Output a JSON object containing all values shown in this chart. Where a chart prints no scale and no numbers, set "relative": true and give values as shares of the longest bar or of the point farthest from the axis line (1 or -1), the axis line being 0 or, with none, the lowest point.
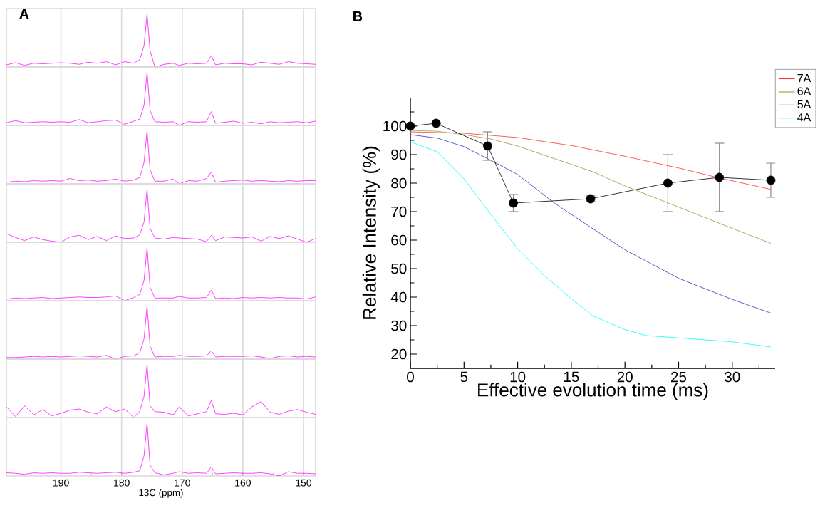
{
  "chart_data": [
    {
      "type": "line",
      "title": "A",
      "relative": true,
      "xlim": [
        199,
        148
      ],
      "xticks": [
        190,
        180,
        170,
        160,
        150
      ],
      "grid": "x",
      "tick_labels": false,
      "x": [
        199,
        197.5,
        196,
        194.5,
        193,
        191.5,
        190,
        188.5,
        187,
        185.5,
        184,
        182.5,
        181,
        179.5,
        178,
        177,
        176.3,
        175.8,
        175.3,
        174.5,
        173,
        171.5,
        170.5,
        169,
        167.5,
        166,
        165.2,
        164.5,
        163,
        161.5,
        160,
        158.5,
        157,
        155.5,
        154,
        152.5,
        151,
        149.5,
        148
      ],
      "series": [
        {
          "color": "#ff33ff",
          "values": [
            0.04,
            0.08,
            0.03,
            0.07,
            0.06,
            0.07,
            0.08,
            0.07,
            0.05,
            0.09,
            0.07,
            0.1,
            0.04,
            0.1,
            0.07,
            0.14,
            0.4,
            1,
            0.3,
            0.0,
            0.05,
            0.07,
            0.03,
            0.07,
            0.06,
            0.07,
            0.21,
            0.04,
            0.07,
            0.06,
            0.06,
            0.04,
            0.09,
            0.07,
            0.05,
            0.1,
            0.07,
            0.06,
            0.05
          ]
        }
      ]
    },
    {
      "type": "line",
      "relative": true,
      "xlim": [
        199,
        148
      ],
      "xticks": [
        190,
        180,
        170,
        160,
        150
      ],
      "grid": "x",
      "tick_labels": false,
      "x": [
        199,
        197.5,
        196,
        194.5,
        193,
        191.5,
        190,
        188.5,
        187,
        185.5,
        184,
        182.5,
        181,
        179.5,
        178,
        177,
        176.3,
        175.8,
        175.3,
        174.5,
        173,
        171.5,
        170.5,
        169,
        167.5,
        166,
        165.2,
        164.5,
        163,
        161.5,
        160,
        158.5,
        157,
        155.5,
        154,
        152.5,
        151,
        149.5,
        148
      ],
      "series": [
        {
          "color": "#ff33ff",
          "values": [
            0.05,
            0.09,
            0.05,
            0.06,
            0.07,
            0.06,
            0.07,
            0.06,
            0.11,
            0.05,
            0.07,
            0.09,
            0.1,
            0.02,
            0.08,
            0.12,
            0.38,
            1,
            0.28,
            0.07,
            0.06,
            0.07,
            0.0,
            0.07,
            0.06,
            0.07,
            0.26,
            0.04,
            0.06,
            0.08,
            0.04,
            0.06,
            0.03,
            0.07,
            0.05,
            0.06,
            0.07,
            0.05,
            0.08
          ]
        }
      ]
    },
    {
      "type": "line",
      "relative": true,
      "xlim": [
        199,
        148
      ],
      "xticks": [
        190,
        180,
        170,
        160,
        150
      ],
      "grid": "x",
      "tick_labels": false,
      "x": [
        199,
        197.5,
        196,
        194.5,
        193,
        191.5,
        190,
        188.5,
        187,
        185.5,
        184,
        182.5,
        181,
        179.5,
        178,
        177,
        176.3,
        175.8,
        175.3,
        174.5,
        173,
        171.5,
        170.5,
        169,
        167.5,
        166,
        165.2,
        164.5,
        163,
        161.5,
        160,
        158.5,
        157,
        155.5,
        154,
        152.5,
        151,
        149.5,
        148
      ],
      "series": [
        {
          "color": "#ff33ff",
          "values": [
            0.03,
            0.05,
            0.04,
            0.06,
            0.05,
            0.06,
            0.05,
            0.1,
            0.06,
            0.07,
            0.05,
            0.06,
            0.09,
            0.05,
            0.07,
            0.12,
            0.4,
            1,
            0.26,
            0.05,
            0.05,
            0.09,
            0.0,
            0.06,
            0.05,
            0.1,
            0.22,
            0.03,
            0.05,
            0.06,
            0.07,
            0.05,
            0.06,
            0.05,
            0.04,
            0.06,
            0.05,
            0.06,
            0.06
          ]
        }
      ]
    },
    {
      "type": "line",
      "relative": true,
      "xlim": [
        199,
        148
      ],
      "xticks": [
        190,
        180,
        170,
        160,
        150
      ],
      "grid": "x",
      "tick_labels": false,
      "x": [
        199,
        197.5,
        196,
        194.5,
        193,
        191.5,
        190,
        188.5,
        187,
        185.5,
        184,
        182.5,
        181,
        179.5,
        178,
        177,
        176.3,
        175.8,
        175.3,
        174.5,
        173,
        171.5,
        170.5,
        169,
        167.5,
        166,
        165.2,
        164.5,
        163,
        161.5,
        160,
        158.5,
        157,
        155.5,
        154,
        152.5,
        151,
        149.5,
        148
      ],
      "series": [
        {
          "color": "#ff33ff",
          "values": [
            0.16,
            0.09,
            0.03,
            0.1,
            0.05,
            0.02,
            0.0,
            0.1,
            0.13,
            0.05,
            0.11,
            0.03,
            0.12,
            0.07,
            0.08,
            0.14,
            0.38,
            1,
            0.26,
            0.08,
            0.06,
            0.09,
            0.08,
            0.07,
            0.06,
            0.01,
            0.13,
            0.03,
            0.1,
            0.09,
            0.08,
            0.1,
            0.02,
            0.11,
            0.07,
            0.12,
            0.06,
            0.0,
            0.07
          ]
        }
      ]
    },
    {
      "type": "line",
      "relative": true,
      "xlim": [
        199,
        148
      ],
      "xticks": [
        190,
        180,
        170,
        160,
        150
      ],
      "grid": "x",
      "tick_labels": false,
      "x": [
        199,
        197.5,
        196,
        194.5,
        193,
        191.5,
        190,
        188.5,
        187,
        185.5,
        184,
        182.5,
        181,
        179.5,
        178,
        177,
        176.3,
        175.8,
        175.3,
        174.5,
        173,
        171.5,
        170.5,
        169,
        167.5,
        166,
        165.2,
        164.5,
        163,
        161.5,
        160,
        158.5,
        157,
        155.5,
        154,
        152.5,
        151,
        149.5,
        148
      ],
      "series": [
        {
          "color": "#ff33ff",
          "values": [
            0.03,
            0.05,
            0.04,
            0.05,
            0.06,
            0.04,
            0.05,
            0.06,
            0.07,
            0.06,
            0.06,
            0.07,
            0.09,
            0.0,
            0.06,
            0.12,
            0.38,
            1,
            0.25,
            0.05,
            0.05,
            0.05,
            0.08,
            0.05,
            0.05,
            0.06,
            0.2,
            0.04,
            0.05,
            0.04,
            0.06,
            0.05,
            0.06,
            0.05,
            0.06,
            0.05,
            0.05,
            0.03,
            0.07
          ]
        }
      ]
    },
    {
      "type": "line",
      "relative": true,
      "xlim": [
        199,
        148
      ],
      "xticks": [
        190,
        180,
        170,
        160,
        150
      ],
      "grid": "x",
      "tick_labels": false,
      "x": [
        199,
        197.5,
        196,
        194.5,
        193,
        191.5,
        190,
        188.5,
        187,
        185.5,
        184,
        182.5,
        181,
        179.5,
        178,
        177,
        176.3,
        175.8,
        175.3,
        174.5,
        173,
        171.5,
        170.5,
        169,
        167.5,
        166,
        165.2,
        164.5,
        163,
        161.5,
        160,
        158.5,
        157,
        155.5,
        154,
        152.5,
        151,
        149.5,
        148
      ],
      "series": [
        {
          "color": "#ff33ff",
          "values": [
            0.03,
            0.03,
            0.04,
            0.05,
            0.04,
            0.05,
            0.04,
            0.05,
            0.06,
            0.05,
            0.04,
            0.07,
            0.0,
            0.05,
            0.06,
            0.12,
            0.38,
            1,
            0.24,
            0.04,
            0.05,
            0.05,
            0.07,
            0.05,
            0.05,
            0.06,
            0.16,
            0.04,
            0.05,
            0.05,
            0.05,
            0.06,
            0.04,
            0.01,
            0.05,
            0.06,
            0.04,
            0.05,
            0.04
          ]
        }
      ]
    },
    {
      "type": "line",
      "relative": true,
      "xlim": [
        199,
        148
      ],
      "xticks": [
        190,
        180,
        170,
        160,
        150
      ],
      "grid": "x",
      "tick_labels": false,
      "x": [
        199,
        197.5,
        196,
        194.5,
        193,
        191.5,
        190,
        188.5,
        187,
        185.5,
        184,
        182.5,
        181,
        179.5,
        178,
        177,
        176.3,
        175.8,
        175.3,
        174.5,
        173,
        171.5,
        170.5,
        169,
        167.5,
        166,
        165.2,
        164.5,
        163,
        161.5,
        160,
        158.5,
        157,
        155.5,
        154,
        152.5,
        151,
        149.5,
        148
      ],
      "series": [
        {
          "color": "#ff33ff",
          "values": [
            0.2,
            0.02,
            0.22,
            0.05,
            0.15,
            0.03,
            0.08,
            0.14,
            0.16,
            0.1,
            0.07,
            0.2,
            0.11,
            0.16,
            0.0,
            0.12,
            0.4,
            1,
            0.22,
            0.11,
            0.1,
            0.05,
            0.2,
            0.03,
            0.07,
            0.11,
            0.32,
            0.07,
            0.06,
            0.08,
            0.05,
            0.2,
            0.3,
            0.1,
            0.06,
            0.12,
            0.15,
            0.1,
            0.06
          ]
        }
      ]
    },
    {
      "type": "line",
      "relative": true,
      "xlim": [
        199,
        148
      ],
      "xticks": [
        {
          "value": 195,
          "label": null
        },
        190,
        {
          "value": 185,
          "label": null
        },
        180,
        {
          "value": 175,
          "label": null
        },
        170,
        {
          "value": 165,
          "label": null
        },
        160,
        {
          "value": 155,
          "label": null
        },
        150
      ],
      "grid": "x",
      "tick_labels": "x",
      "xlabel": "13C (ppm)",
      "x": [
        199,
        197.5,
        196,
        194.5,
        193,
        191.5,
        190,
        188.5,
        187,
        185.5,
        184,
        182.5,
        181,
        179.5,
        178,
        177,
        176.3,
        175.8,
        175.3,
        174.5,
        173,
        171.5,
        170.5,
        169,
        167.5,
        166,
        165.2,
        164.5,
        163,
        161.5,
        160,
        158.5,
        157,
        155.5,
        154,
        152.5,
        151,
        149.5,
        148
      ],
      "series": [
        {
          "color": "#ff33ff",
          "values": [
            0.06,
            0.05,
            0.03,
            0.06,
            0.05,
            0.06,
            0.05,
            0.05,
            0.07,
            0.06,
            0.05,
            0.06,
            0.07,
            0.05,
            0.07,
            0.1,
            0.38,
            1,
            0.2,
            0.06,
            0.02,
            0.05,
            0.08,
            0.05,
            0.06,
            0.05,
            0.17,
            0.04,
            0.05,
            0.06,
            0.05,
            0.05,
            0.06,
            0.04,
            0.0,
            0.08,
            0.05,
            0.05,
            0.04
          ]
        }
      ]
    },
    {
      "type": "line",
      "title": "B",
      "xlabel": "Effective evolution time (ms)",
      "ylabel": "Relative Intensity (%)",
      "xlim": [
        0,
        34
      ],
      "ylim": [
        15,
        110
      ],
      "xticks": [
        0,
        {
          "value": 2.5,
          "label": null
        },
        5,
        {
          "value": 7.5,
          "label": null
        },
        10,
        {
          "value": 12.5,
          "label": null
        },
        15,
        {
          "value": 17.5,
          "label": null
        },
        20,
        {
          "value": 22.5,
          "label": null
        },
        25,
        {
          "value": 27.5,
          "label": null
        },
        30,
        {
          "value": 32.5,
          "label": null
        }
      ],
      "yticks": [
        20,
        {
          "value": 25,
          "label": null
        },
        30,
        {
          "value": 35,
          "label": null
        },
        40,
        {
          "value": 45,
          "label": null
        },
        50,
        {
          "value": 55,
          "label": null
        },
        60,
        {
          "value": 65,
          "label": null
        },
        70,
        {
          "value": 75,
          "label": null
        },
        80,
        {
          "value": 85,
          "label": null
        },
        90,
        {
          "value": 95,
          "label": null
        },
        100,
        {
          "value": 105,
          "label": null
        }
      ],
      "legend": "top right",
      "series": [
        {
          "name": "7A",
          "color": "#ff3333",
          "x": [
            0,
            5,
            10,
            13.5,
            15,
            20,
            25,
            28.8,
            33.6
          ],
          "values": [
            98,
            97.5,
            96,
            94,
            93.2,
            89.4,
            85.3,
            81.8,
            77.8
          ]
        },
        {
          "name": "6A",
          "color": "#999933",
          "x": [
            0,
            2.5,
            5,
            7.5,
            10,
            13.5,
            17,
            20,
            25,
            30,
            33.6
          ],
          "values": [
            98.5,
            98.2,
            97,
            95.5,
            93,
            88.5,
            84,
            79,
            71.6,
            64.1,
            58.9
          ]
        },
        {
          "name": "5A",
          "color": "#3333bb",
          "x": [
            0,
            2.5,
            5,
            7.5,
            10,
            13.5,
            15,
            20,
            25,
            30,
            33.6
          ],
          "values": [
            97,
            95.8,
            92.8,
            88,
            83,
            72.8,
            69,
            56.6,
            46.6,
            39.2,
            34.4
          ]
        },
        {
          "name": "4A",
          "color": "#00ffff",
          "x": [
            0,
            2.5,
            5,
            7.5,
            10,
            12.5,
            15,
            17,
            20,
            22,
            25,
            30,
            33.6
          ],
          "values": [
            94.5,
            91,
            81.5,
            69,
            57,
            47.5,
            39.5,
            33.4,
            28.6,
            26.5,
            25.7,
            24.3,
            22.5
          ]
        },
        {
          "color": "#000000",
          "marker": "circle",
          "x": [
            0,
            2.4,
            7.2,
            9.6,
            16.8,
            24,
            28.8,
            33.6
          ],
          "values": [
            100,
            101,
            93,
            73,
            74.5,
            80,
            82,
            81
          ],
          "errors": [
            null,
            null,
            5,
            3,
            1,
            10,
            12,
            6
          ]
        }
      ]
    }
  ]
}
